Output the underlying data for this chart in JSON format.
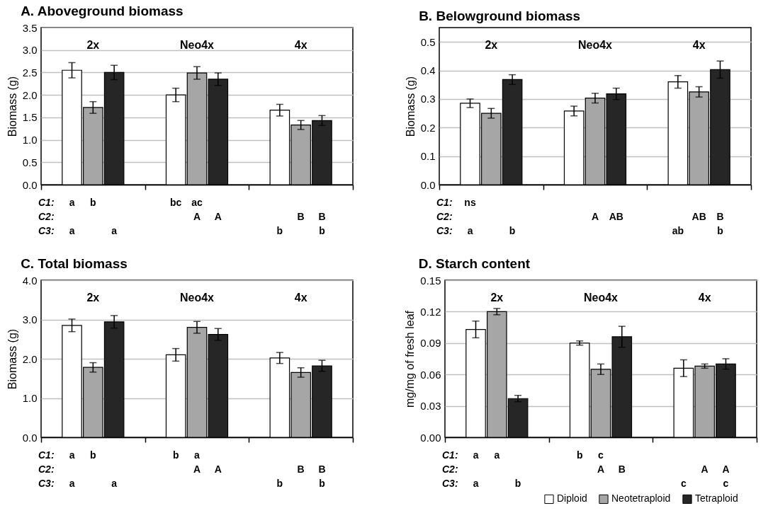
{
  "chart_data": [
    {
      "type": "bar",
      "title": "A. Aboveground biomass",
      "ylabel": "Biomass (g)",
      "categories": [
        "2x",
        "Neo4x",
        "4x"
      ],
      "ylim": [
        0,
        3.5
      ],
      "yticks": [
        {
          "value": 0,
          "label": "0.0"
        },
        {
          "value": 0.5,
          "label": "0.5"
        },
        {
          "value": 1,
          "label": "1.0"
        },
        {
          "value": 1.5,
          "label": "1.5"
        },
        {
          "value": 2,
          "label": "2.0"
        },
        {
          "value": 2.5,
          "label": "2.5"
        },
        {
          "value": 3,
          "label": "3.0"
        },
        {
          "value": 3.5,
          "label": "3.5"
        }
      ],
      "grid": "y",
      "series": [
        {
          "color": "#ffffff",
          "values": [
            2.55,
            2.0,
            1.66
          ],
          "errors": [
            0.17,
            0.15,
            0.13
          ]
        },
        {
          "color": "#a6a6a6",
          "values": [
            1.72,
            2.49,
            1.33
          ],
          "errors": [
            0.13,
            0.14,
            0.1
          ]
        },
        {
          "color": "#262626",
          "values": [
            2.5,
            2.35,
            1.43
          ],
          "errors": [
            0.16,
            0.14,
            0.11
          ]
        }
      ],
      "annotations": [
        "C1:",
        "a",
        "b",
        "bc",
        "ac",
        "C2:",
        "A",
        "A",
        "B",
        "B",
        "C3:",
        "a",
        "a",
        "b",
        "b"
      ]
    },
    {
      "type": "bar",
      "title": "B. Belowground biomass",
      "ylabel": "Biomass (g)",
      "categories": [
        "2x",
        "Neo4x",
        "4x"
      ],
      "ylim": [
        0,
        0.55
      ],
      "yticks": [
        {
          "value": 0,
          "label": "0.0"
        },
        0.1,
        0.2,
        0.3,
        0.4,
        0.5
      ],
      "grid": "y",
      "series": [
        {
          "color": "#ffffff",
          "values": [
            0.285,
            0.258,
            0.36
          ],
          "errors": [
            0.015,
            0.017,
            0.022
          ]
        },
        {
          "color": "#a6a6a6",
          "values": [
            0.25,
            0.303,
            0.325
          ],
          "errors": [
            0.017,
            0.017,
            0.018
          ]
        },
        {
          "color": "#262626",
          "values": [
            0.368,
            0.318,
            0.403
          ],
          "errors": [
            0.017,
            0.02,
            0.03
          ]
        }
      ],
      "annotations": [
        "C1:",
        "ns",
        "C2:",
        "A",
        "AB",
        "AB",
        "B",
        "C3:",
        "a",
        "b",
        "ab",
        "b"
      ]
    },
    {
      "type": "bar",
      "title": "C. Total biomass",
      "ylabel": "Biomass (g)",
      "categories": [
        "2x",
        "Neo4x",
        "4x"
      ],
      "ylim": [
        0,
        4
      ],
      "yticks": [
        {
          "value": 0,
          "label": "0.0"
        },
        {
          "value": 1,
          "label": "1.0"
        },
        {
          "value": 2,
          "label": "2.0"
        },
        {
          "value": 3,
          "label": "3.0"
        },
        {
          "value": 4,
          "label": "4.0"
        }
      ],
      "grid": "y",
      "series": [
        {
          "color": "#ffffff",
          "values": [
            2.85,
            2.1,
            2.02
          ],
          "errors": [
            0.16,
            0.16,
            0.14
          ]
        },
        {
          "color": "#a6a6a6",
          "values": [
            1.78,
            2.8,
            1.65
          ],
          "errors": [
            0.12,
            0.15,
            0.12
          ]
        },
        {
          "color": "#262626",
          "values": [
            2.94,
            2.62,
            1.82
          ],
          "errors": [
            0.16,
            0.15,
            0.14
          ]
        }
      ],
      "annotations": [
        "C1:",
        "a",
        "b",
        "b",
        "a",
        "C2:",
        "A",
        "A",
        "B",
        "B",
        "C3:",
        "a",
        "a",
        "b",
        "b"
      ]
    },
    {
      "type": "bar",
      "title": "D. Starch content",
      "ylabel": "mg/mg of fresh leaf",
      "categories": [
        "2x",
        "Neo4x",
        "4x"
      ],
      "ylim": [
        0,
        0.15
      ],
      "yticks": [
        {
          "value": 0,
          "label": "0.00"
        },
        {
          "value": 0.03,
          "label": "0.03"
        },
        {
          "value": 0.06,
          "label": "0.06"
        },
        {
          "value": 0.09,
          "label": "0.09"
        },
        {
          "value": 0.12,
          "label": "0.12"
        },
        {
          "value": 0.15,
          "label": "0.15"
        }
      ],
      "grid": "y",
      "legend": "bottom right",
      "series": [
        {
          "name": "Diploid",
          "color": "#ffffff",
          "values": [
            0.103,
            0.09,
            0.066
          ],
          "errors": [
            0.008,
            0.002,
            0.008
          ]
        },
        {
          "name": "Neotetraploid",
          "color": "#a6a6a6",
          "values": [
            0.12,
            0.065,
            0.068
          ],
          "errors": [
            0.003,
            0.005,
            0.002
          ]
        },
        {
          "name": "Tetraploid",
          "color": "#262626",
          "values": [
            0.037,
            0.096,
            0.07
          ],
          "errors": [
            0.003,
            0.01,
            0.005
          ]
        }
      ],
      "annotations": [
        "C1:",
        "a",
        "a",
        "b",
        "c",
        "C2:",
        "A",
        "B",
        "A",
        "A",
        "C3:",
        "a",
        "b",
        "c",
        "c"
      ]
    }
  ]
}
